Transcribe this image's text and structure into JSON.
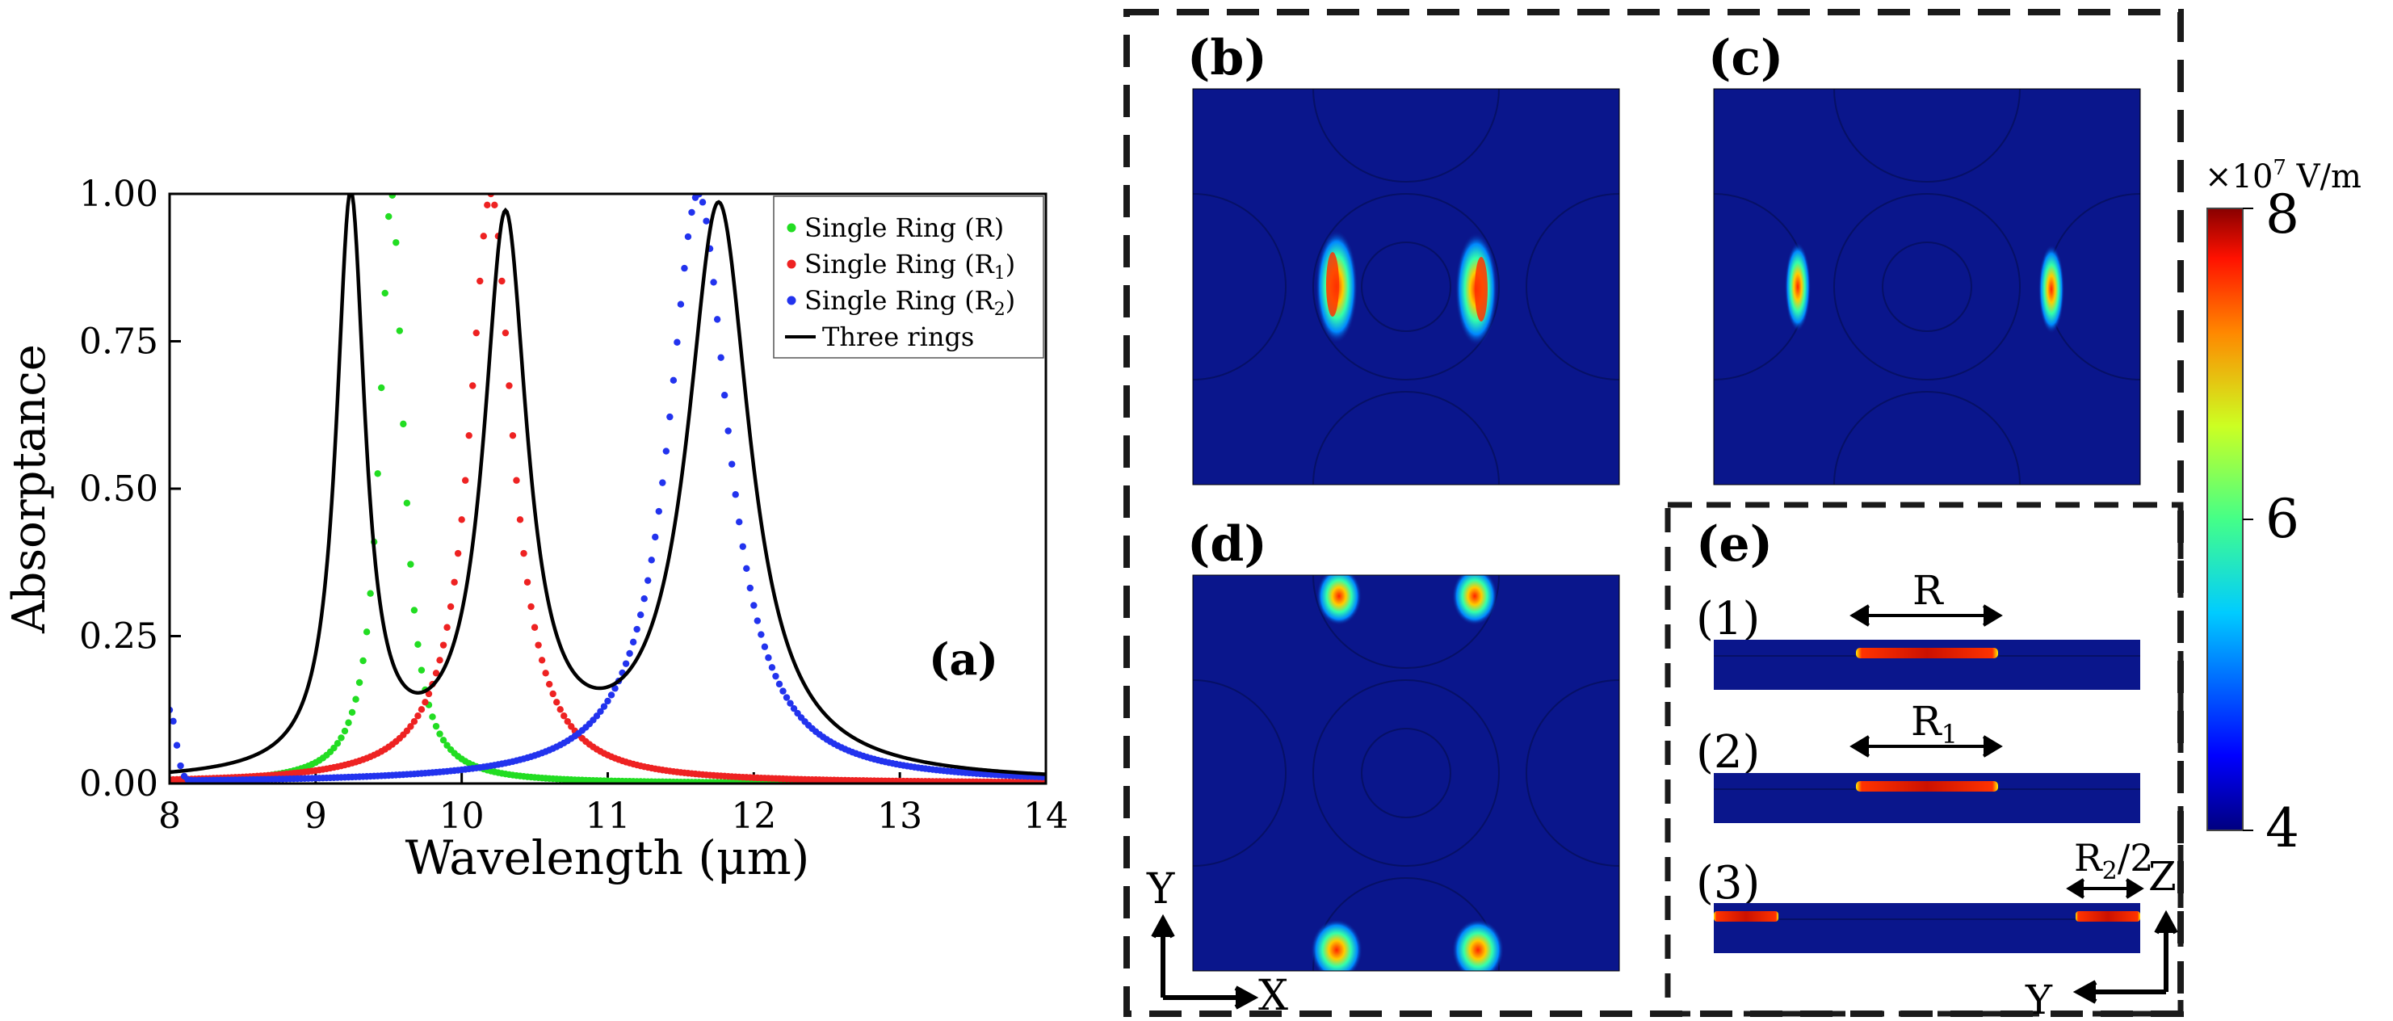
{
  "chart_data": {
    "type": "line",
    "panel_label": "(a)",
    "xlabel": "Wavelength (μm)",
    "ylabel": "Absorptance",
    "xlim": [
      8,
      14
    ],
    "ylim": [
      0,
      1
    ],
    "xticks": [
      "8",
      "9",
      "10",
      "11",
      "12",
      "13",
      "14"
    ],
    "yticks": [
      "0.00",
      "0.25",
      "0.50",
      "0.75",
      "1.00"
    ],
    "legend_position": "top-right",
    "series": [
      {
        "name": "Single Ring (R)",
        "base": "Single Ring (R",
        "sub": "",
        "style": "dots",
        "color": "#22dd22",
        "peaks": [
          [
            9.52,
            1.0,
            0.2
          ]
        ],
        "floor": 0.0
      },
      {
        "name": "Single Ring (R1)",
        "base": "Single Ring (R",
        "sub": "1",
        "style": "dots",
        "color": "#ee2222",
        "peaks": [
          [
            10.2,
            1.0,
            0.36
          ]
        ],
        "floor": 0.0
      },
      {
        "name": "Single Ring (R2)",
        "base": "Single Ring (R",
        "sub": "2",
        "style": "dots",
        "color": "#2233ee",
        "peaks": [
          [
            11.62,
            1.0,
            0.5
          ]
        ],
        "floor": 0.0,
        "start_spike": [
          8.0,
          0.12
        ]
      },
      {
        "name": "Three rings",
        "base": "Three rings",
        "sub": "",
        "style": "line",
        "color": "#000000",
        "peaks": [
          [
            9.24,
            0.97,
            0.24
          ],
          [
            10.3,
            0.93,
            0.36
          ],
          [
            11.76,
            0.97,
            0.52
          ]
        ],
        "floor": 0.0
      }
    ]
  },
  "field_maps": {
    "panel_b": "(b)",
    "panel_c": "(c)",
    "panel_d": "(d)",
    "panel_e": "(e)",
    "sub_1": "(1)",
    "sub_2": "(2)",
    "sub_3": "(3)",
    "dim_r": "R",
    "dim_r1_base": "R",
    "dim_r1_sub": "1",
    "dim_r2_base": "R",
    "dim_r2_sub": "2",
    "dim_r2_suffix": "/2",
    "axis_y_left": "Y",
    "axis_x_left": "X",
    "axis_z_right": "Z",
    "axis_y_right": "Y"
  },
  "colorbar": {
    "unit_prefix": "×10",
    "unit_exp": "7",
    "unit_suffix": " V/m",
    "ticks": [
      "8",
      "6",
      "4"
    ],
    "range": [
      4,
      8
    ]
  },
  "colors": {
    "field_background": "#0a168c",
    "dash": "#1a1a1a"
  }
}
